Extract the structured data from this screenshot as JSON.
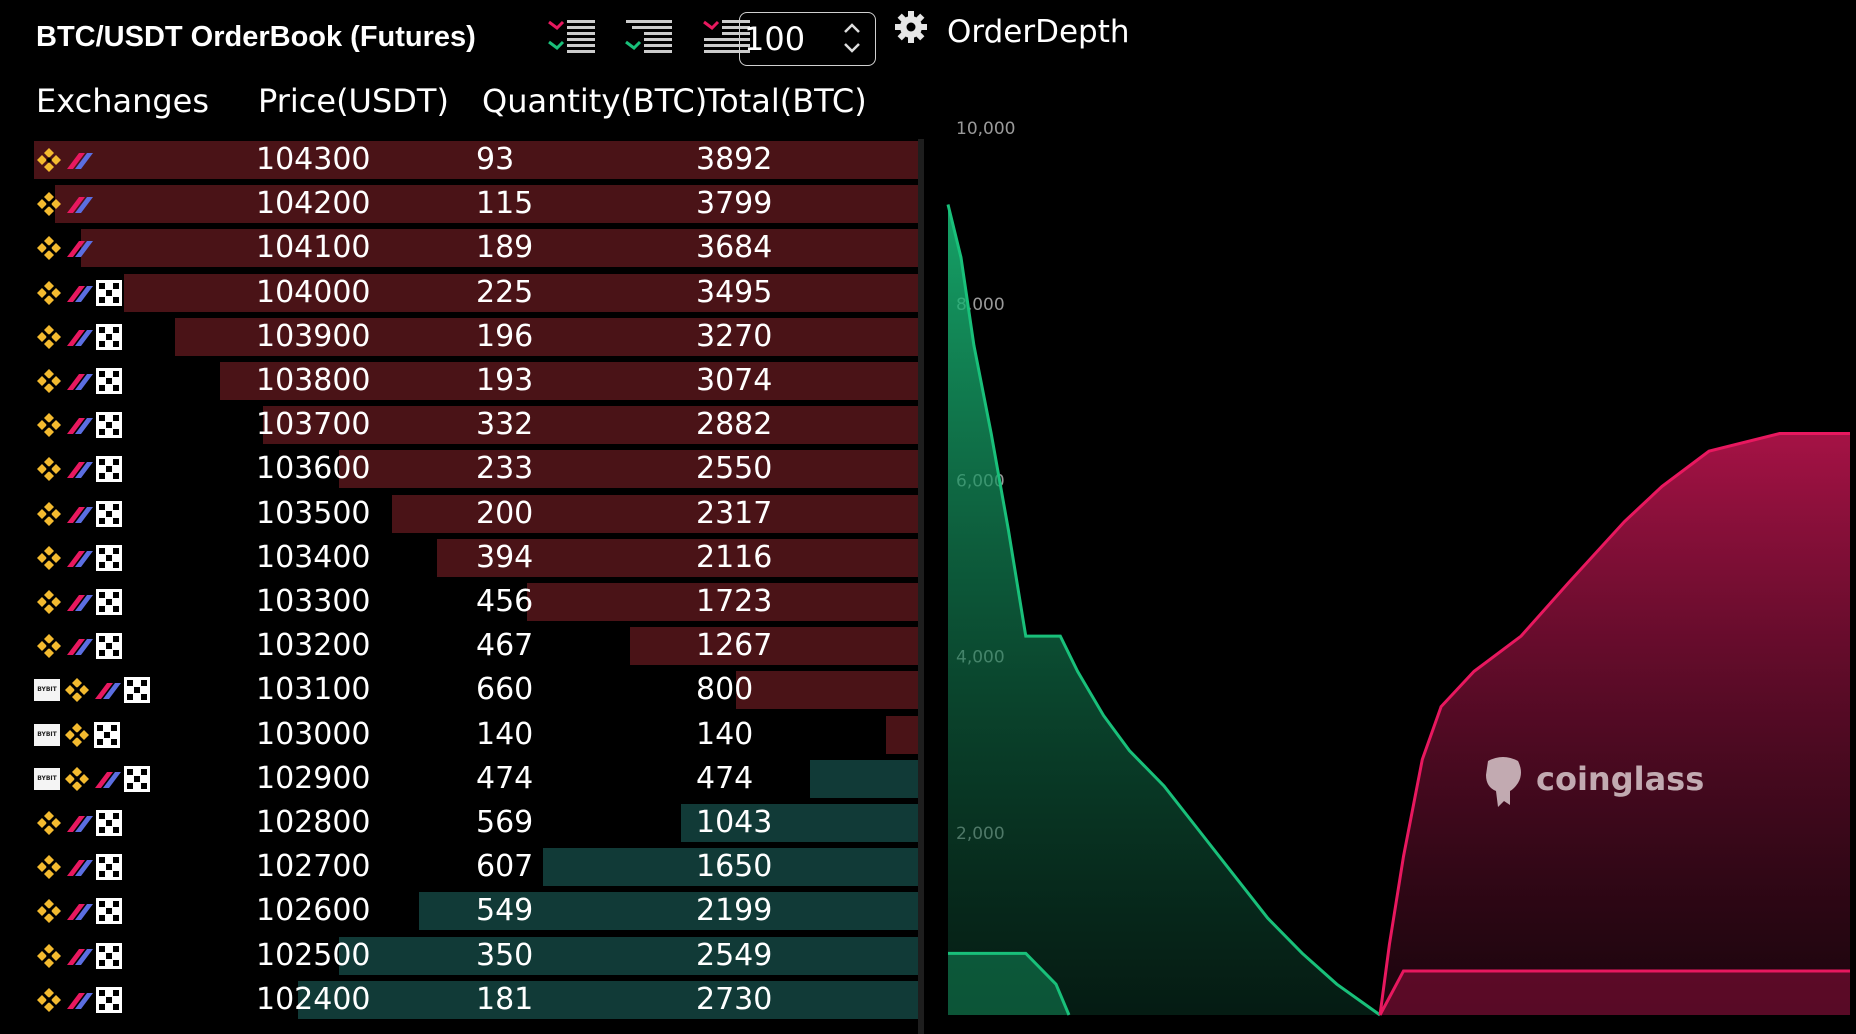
{
  "header": {
    "title": "BTC/USDT OrderBook (Futures)",
    "view_buttons": [
      "both-sides-view-icon",
      "bids-only-view-icon",
      "asks-only-view-icon"
    ],
    "depth_select": {
      "value": "100"
    },
    "settings_icon": "gear-icon",
    "chart_label": "OrderDepth"
  },
  "orderbook": {
    "columns": [
      "Exchanges",
      "Price(USDT)",
      "Quantity(BTC)",
      "Total(BTC)"
    ],
    "max_total": 3892,
    "colors": {
      "ask": "#4a1317",
      "bid": "#113a37"
    },
    "asks": [
      {
        "exchanges": [
          "binance",
          "bitget"
        ],
        "price": "104300",
        "qty": "93",
        "total": "3892"
      },
      {
        "exchanges": [
          "binance",
          "bitget"
        ],
        "price": "104200",
        "qty": "115",
        "total": "3799"
      },
      {
        "exchanges": [
          "binance",
          "bitget"
        ],
        "price": "104100",
        "qty": "189",
        "total": "3684"
      },
      {
        "exchanges": [
          "binance",
          "bitget",
          "okx"
        ],
        "price": "104000",
        "qty": "225",
        "total": "3495"
      },
      {
        "exchanges": [
          "binance",
          "bitget",
          "okx"
        ],
        "price": "103900",
        "qty": "196",
        "total": "3270"
      },
      {
        "exchanges": [
          "binance",
          "bitget",
          "okx"
        ],
        "price": "103800",
        "qty": "193",
        "total": "3074"
      },
      {
        "exchanges": [
          "binance",
          "bitget",
          "okx"
        ],
        "price": "103700",
        "qty": "332",
        "total": "2882"
      },
      {
        "exchanges": [
          "binance",
          "bitget",
          "okx"
        ],
        "price": "103600",
        "qty": "233",
        "total": "2550"
      },
      {
        "exchanges": [
          "binance",
          "bitget",
          "okx"
        ],
        "price": "103500",
        "qty": "200",
        "total": "2317"
      },
      {
        "exchanges": [
          "binance",
          "bitget",
          "okx"
        ],
        "price": "103400",
        "qty": "394",
        "total": "2116"
      },
      {
        "exchanges": [
          "binance",
          "bitget",
          "okx"
        ],
        "price": "103300",
        "qty": "456",
        "total": "1723"
      },
      {
        "exchanges": [
          "binance",
          "bitget",
          "okx"
        ],
        "price": "103200",
        "qty": "467",
        "total": "1267"
      },
      {
        "exchanges": [
          "bybit",
          "binance",
          "bitget",
          "okx"
        ],
        "price": "103100",
        "qty": "660",
        "total": "800"
      },
      {
        "exchanges": [
          "bybit",
          "binance",
          "okx"
        ],
        "price": "103000",
        "qty": "140",
        "total": "140"
      }
    ],
    "bids": [
      {
        "exchanges": [
          "bybit",
          "binance",
          "bitget",
          "okx"
        ],
        "price": "102900",
        "qty": "474",
        "total": "474"
      },
      {
        "exchanges": [
          "binance",
          "bitget",
          "okx"
        ],
        "price": "102800",
        "qty": "569",
        "total": "1043"
      },
      {
        "exchanges": [
          "binance",
          "bitget",
          "okx"
        ],
        "price": "102700",
        "qty": "607",
        "total": "1650"
      },
      {
        "exchanges": [
          "binance",
          "bitget",
          "okx"
        ],
        "price": "102600",
        "qty": "549",
        "total": "2199"
      },
      {
        "exchanges": [
          "binance",
          "bitget",
          "okx"
        ],
        "price": "102500",
        "qty": "350",
        "total": "2549"
      },
      {
        "exchanges": [
          "binance",
          "bitget",
          "okx"
        ],
        "price": "102400",
        "qty": "181",
        "total": "2730"
      }
    ]
  },
  "chart_data": {
    "type": "area",
    "yticks": [
      "2,000",
      "4,000",
      "6,000",
      "8,000",
      "10,000"
    ],
    "ylim": [
      0,
      10000
    ],
    "colors": {
      "bid": "#19c07a",
      "ask": "#e8185f"
    },
    "bid_depth": [
      [
        0,
        9200
      ],
      [
        0.03,
        8600
      ],
      [
        0.06,
        7600
      ],
      [
        0.1,
        6600
      ],
      [
        0.14,
        5500
      ],
      [
        0.18,
        4300
      ],
      [
        0.26,
        4300
      ],
      [
        0.3,
        3900
      ],
      [
        0.36,
        3400
      ],
      [
        0.42,
        3000
      ],
      [
        0.5,
        2600
      ],
      [
        0.58,
        2100
      ],
      [
        0.66,
        1600
      ],
      [
        0.74,
        1100
      ],
      [
        0.82,
        700
      ],
      [
        0.9,
        350
      ],
      [
        1.0,
        0
      ]
    ],
    "ask_depth": [
      [
        0,
        0
      ],
      [
        0.02,
        800
      ],
      [
        0.05,
        1800
      ],
      [
        0.09,
        2900
      ],
      [
        0.13,
        3500
      ],
      [
        0.2,
        3900
      ],
      [
        0.3,
        4300
      ],
      [
        0.4,
        4900
      ],
      [
        0.52,
        5600
      ],
      [
        0.6,
        6000
      ],
      [
        0.7,
        6400
      ],
      [
        0.85,
        6600
      ],
      [
        1.0,
        6600
      ]
    ],
    "bid_small": [
      [
        0,
        700
      ],
      [
        0.18,
        700
      ],
      [
        0.25,
        350
      ],
      [
        0.28,
        0
      ]
    ],
    "ask_small": [
      [
        0,
        0
      ],
      [
        0.05,
        500
      ],
      [
        1.0,
        500
      ]
    ],
    "watermark": "coinglass"
  }
}
